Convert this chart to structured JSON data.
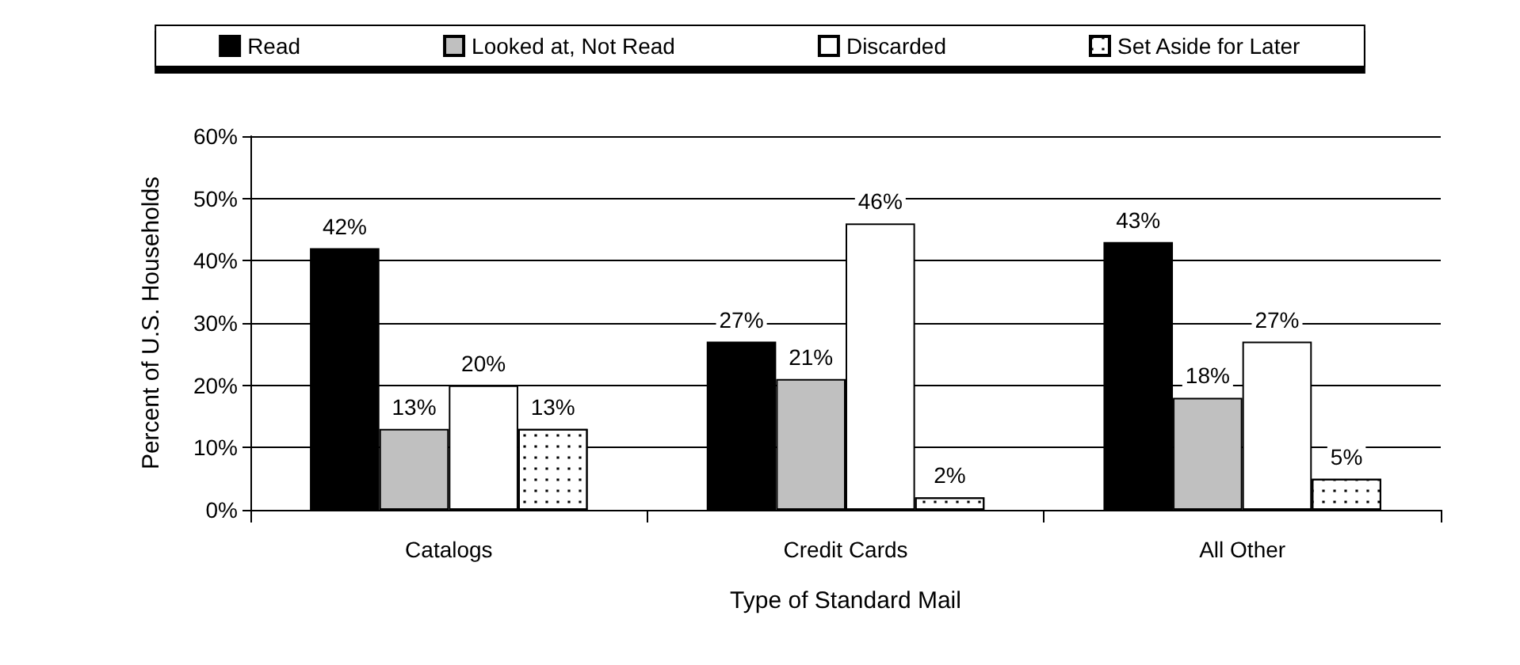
{
  "chart_data": {
    "type": "bar",
    "xlabel": "Type of Standard Mail",
    "ylabel": "Percent of U.S. Households",
    "categories": [
      "Catalogs",
      "Credit Cards",
      "All Other"
    ],
    "series": [
      {
        "name": "Read",
        "color": "#000000",
        "values": [
          42,
          27,
          43
        ],
        "value_labels": [
          "42%",
          "27%",
          "43%"
        ]
      },
      {
        "name": "Looked at, Not Read",
        "color": "#c0c0c0",
        "values": [
          13,
          21,
          18
        ],
        "value_labels": [
          "13%",
          "21%",
          "18%"
        ]
      },
      {
        "name": "Discarded",
        "color": "#ffffff",
        "values": [
          20,
          46,
          27
        ],
        "value_labels": [
          "20%",
          "46%",
          "27%"
        ]
      },
      {
        "name": "Set Aside for Later",
        "color": "#ffffff",
        "values": [
          13,
          2,
          5
        ],
        "value_labels": [
          "13%",
          "2%",
          "5%"
        ]
      }
    ],
    "ylim": [
      0,
      60
    ],
    "yticks": [
      {
        "value": 0,
        "label": "0%"
      },
      {
        "value": 10,
        "label": "10%"
      },
      {
        "value": 20,
        "label": "20%"
      },
      {
        "value": 30,
        "label": "30%"
      },
      {
        "value": 40,
        "label": "40%"
      },
      {
        "value": 50,
        "label": "50%"
      },
      {
        "value": 60,
        "label": "60%"
      }
    ],
    "grid": "y",
    "legend": "top"
  }
}
